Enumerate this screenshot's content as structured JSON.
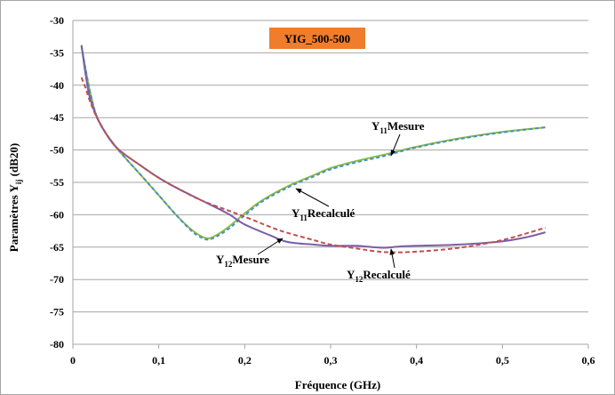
{
  "chart_data": {
    "type": "line",
    "title": "YIG_500-500",
    "title_box_color": "#f07d2b",
    "xlabel": "Fréquence (GHz)",
    "ylabel": "Paramètres Y",
    "ylabel_sub": "ij",
    "ylabel_suffix": " (dB20)",
    "xlim": [
      0,
      0.6
    ],
    "ylim": [
      -80,
      -30
    ],
    "x_ticks": [
      0,
      0.1,
      0.2,
      0.3,
      0.4,
      0.5,
      0.6
    ],
    "x_tick_labels": [
      "0",
      "0,1",
      "0,2",
      "0,3",
      "0,4",
      "0,5",
      "0,6"
    ],
    "y_ticks": [
      -30,
      -35,
      -40,
      -45,
      -50,
      -55,
      -60,
      -65,
      -70,
      -75,
      -80
    ],
    "y_tick_labels": [
      "-30",
      "-35",
      "-40",
      "-45",
      "-50",
      "-55",
      "-60",
      "-65",
      "-70",
      "-75",
      "-80"
    ],
    "grid": "horizontal",
    "series": [
      {
        "key": "y11_mesure",
        "color": "#8cbd3f",
        "dash": "none",
        "x": [
          0.01,
          0.02,
          0.03,
          0.05,
          0.08,
          0.1,
          0.12,
          0.14,
          0.155,
          0.165,
          0.18,
          0.2,
          0.22,
          0.25,
          0.28,
          0.3,
          0.33,
          0.36,
          0.4,
          0.45,
          0.5,
          0.55
        ],
        "y": [
          -34,
          -41,
          -45.5,
          -49.5,
          -54,
          -57,
          -60,
          -62.5,
          -63.6,
          -63.3,
          -62,
          -59.8,
          -57.8,
          -55.6,
          -53.9,
          -52.8,
          -51.7,
          -50.8,
          -49.5,
          -48.2,
          -47.2,
          -46.5
        ]
      },
      {
        "key": "y11_recalcule",
        "color": "#4a8ec8",
        "dash": "4,3",
        "x": [
          0.01,
          0.02,
          0.03,
          0.05,
          0.08,
          0.1,
          0.12,
          0.14,
          0.155,
          0.165,
          0.18,
          0.2,
          0.22,
          0.25,
          0.28,
          0.3,
          0.33,
          0.36,
          0.4,
          0.45,
          0.5,
          0.55
        ],
        "y": [
          -34,
          -41,
          -45.5,
          -49.5,
          -54,
          -57,
          -60,
          -62.7,
          -63.8,
          -63.5,
          -62.3,
          -60.1,
          -58,
          -55.8,
          -54.1,
          -53,
          -51.9,
          -51,
          -49.6,
          -48.3,
          -47.3,
          -46.5
        ]
      },
      {
        "key": "y12_mesure",
        "color": "#7b5ea7",
        "dash": "none",
        "x": [
          0.01,
          0.015,
          0.02,
          0.03,
          0.05,
          0.08,
          0.1,
          0.12,
          0.15,
          0.18,
          0.2,
          0.23,
          0.25,
          0.28,
          0.3,
          0.33,
          0.36,
          0.38,
          0.4,
          0.45,
          0.5,
          0.53,
          0.55
        ],
        "y": [
          -33.8,
          -38.5,
          -42,
          -45.5,
          -49.5,
          -52.5,
          -54.3,
          -55.8,
          -57.8,
          -59.8,
          -61.5,
          -63.2,
          -64.2,
          -64.6,
          -64.8,
          -64.8,
          -65.1,
          -64.9,
          -64.8,
          -64.6,
          -64.1,
          -63.4,
          -62.7
        ]
      },
      {
        "key": "y12_recalcule",
        "color": "#c0504d",
        "dash": "5,3",
        "x": [
          0.01,
          0.015,
          0.02,
          0.03,
          0.05,
          0.08,
          0.1,
          0.12,
          0.15,
          0.18,
          0.2,
          0.23,
          0.25,
          0.28,
          0.3,
          0.33,
          0.35,
          0.37,
          0.4,
          0.45,
          0.5,
          0.55
        ],
        "y": [
          -38.8,
          -40.5,
          -42.5,
          -45.5,
          -49.5,
          -52.5,
          -54.3,
          -55.8,
          -57.8,
          -59.3,
          -60.3,
          -61.9,
          -62.8,
          -63.9,
          -64.6,
          -65.2,
          -65.6,
          -65.8,
          -65.7,
          -65.1,
          -63.9,
          -62
        ]
      }
    ],
    "annotations": [
      {
        "base": "Y",
        "sub": "11",
        "text": "Mesure"
      },
      {
        "base": "Y",
        "sub": "11",
        "text": "Recalculé"
      },
      {
        "base": "Y",
        "sub": "12",
        "text": "Mesure"
      },
      {
        "base": "Y",
        "sub": "12",
        "text": "Recalculé"
      }
    ]
  }
}
